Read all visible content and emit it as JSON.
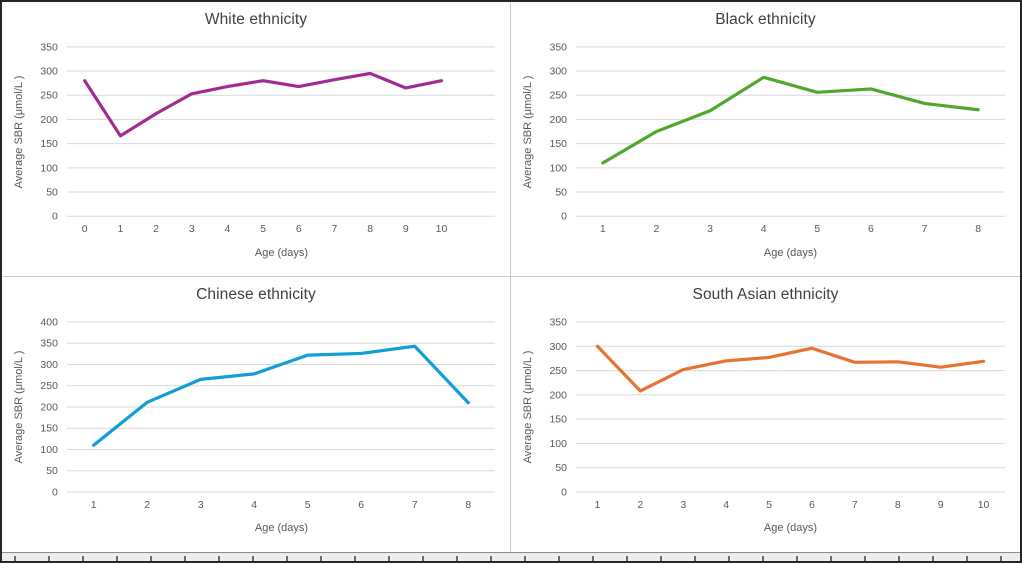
{
  "chart_data": [
    {
      "type": "line",
      "title": "White ethnicity",
      "xlabel": "Age (days)",
      "ylabel": "Average SBR (μmol/L )",
      "x": [
        0,
        1,
        2,
        3,
        4,
        5,
        6,
        7,
        8,
        9,
        10
      ],
      "values": [
        280,
        166,
        212,
        253,
        268,
        280,
        268,
        282,
        295,
        265,
        280
      ],
      "ylim": [
        0,
        350
      ],
      "ytick_step": 50,
      "slots": 12,
      "color": "#A02B93",
      "grid": "horizontal",
      "legend_position": "none"
    },
    {
      "type": "line",
      "title": "Black ethnicity",
      "xlabel": "Age (days)",
      "ylabel": "Average SBR (μmol/L )",
      "x": [
        1,
        2,
        3,
        4,
        5,
        6,
        7,
        8
      ],
      "values": [
        110,
        175,
        218,
        287,
        256,
        263,
        233,
        220
      ],
      "ylim": [
        0,
        350
      ],
      "ytick_step": 50,
      "slots": 8,
      "color": "#4EA72E",
      "grid": "horizontal",
      "legend_position": "none"
    },
    {
      "type": "line",
      "title": "Chinese ethnicity",
      "xlabel": "Age (days)",
      "ylabel": "Average SBR (μmol/L )",
      "x": [
        1,
        2,
        3,
        4,
        5,
        6,
        7,
        8
      ],
      "values": [
        110,
        211,
        265,
        278,
        322,
        326,
        343,
        210
      ],
      "ylim": [
        0,
        400
      ],
      "ytick_step": 50,
      "slots": 8,
      "color": "#0F9ED5",
      "grid": "horizontal",
      "legend_position": "none"
    },
    {
      "type": "line",
      "title": "South Asian ethnicity",
      "xlabel": "Age (days)",
      "ylabel": "Average SBR (μmol/L )",
      "x": [
        1,
        2,
        3,
        4,
        5,
        6,
        7,
        8,
        9,
        10
      ],
      "values": [
        300,
        208,
        252,
        270,
        277,
        296,
        267,
        268,
        257,
        269
      ],
      "ylim": [
        0,
        350
      ],
      "ytick_step": 50,
      "slots": 10,
      "color": "#E97132",
      "grid": "horizontal",
      "legend_position": "none"
    }
  ]
}
